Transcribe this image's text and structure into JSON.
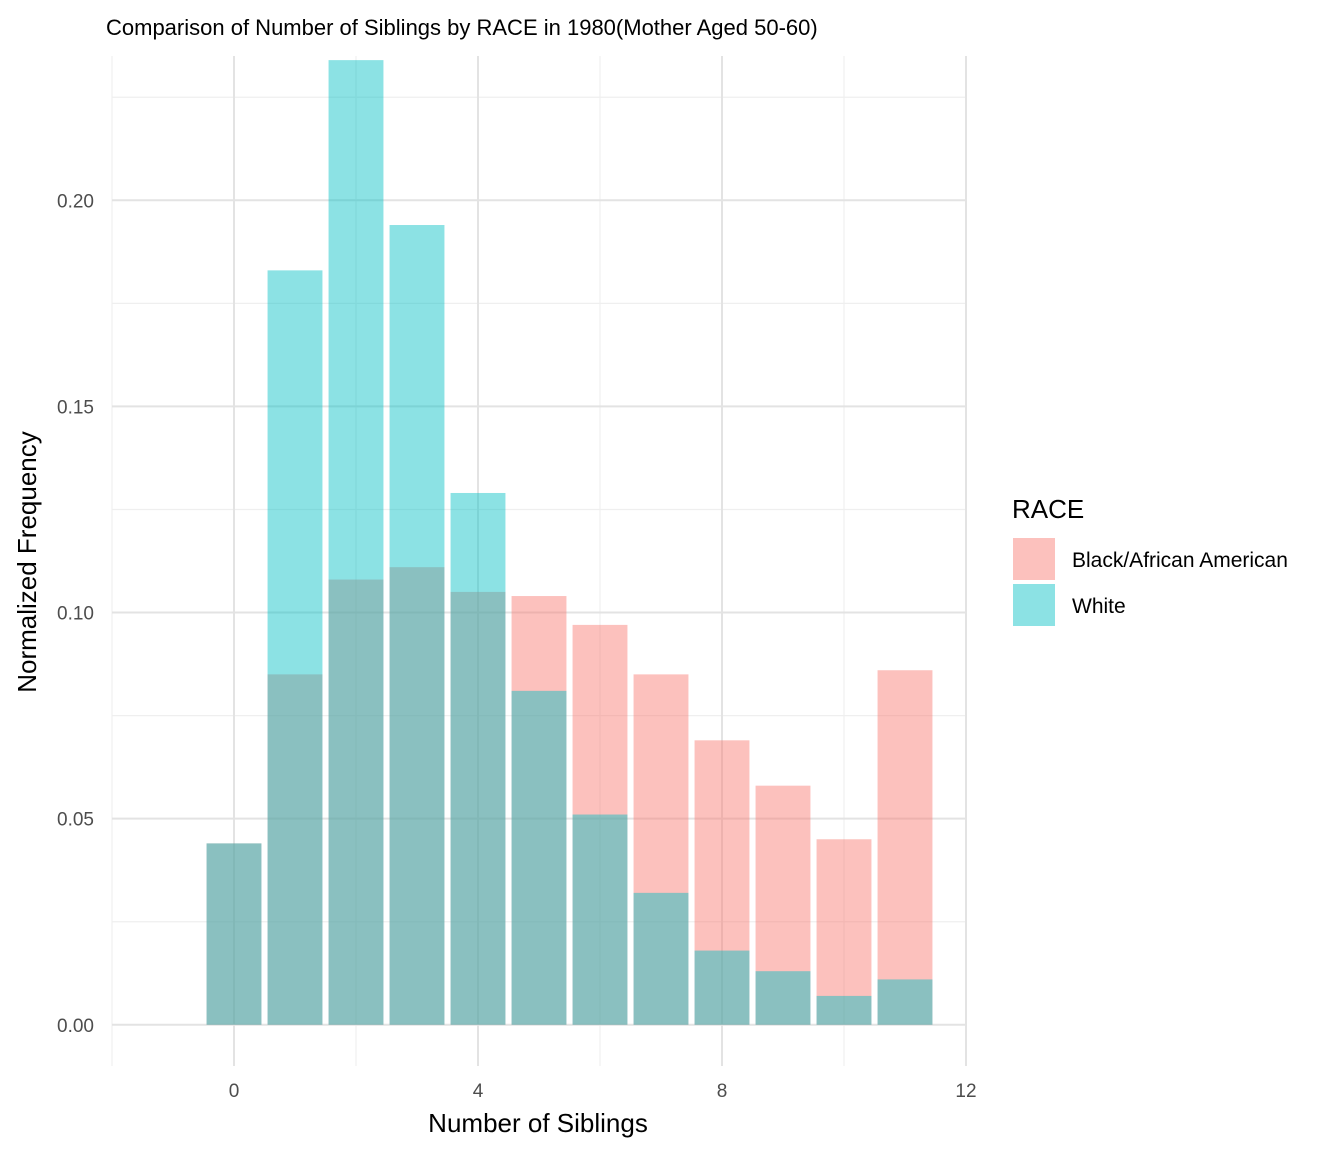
{
  "chart_data": {
    "type": "bar",
    "title": "Comparison of Number of Siblings by RACE in 1980(Mother Aged 50-60)",
    "xlabel": "Number of Siblings",
    "ylabel": "Normalized Frequency",
    "x": [
      0,
      1,
      2,
      3,
      4,
      5,
      6,
      7,
      8,
      9,
      10,
      11
    ],
    "xlim": [
      -2,
      12
    ],
    "ylim": [
      -0.01,
      0.235
    ],
    "xticks": [
      0,
      4,
      8,
      12
    ],
    "yticks": [
      0.0,
      0.05,
      0.1,
      0.15,
      0.2
    ],
    "xtick_labels": [
      "0",
      "4",
      "8",
      "12"
    ],
    "ytick_labels": [
      "0.00",
      "0.05",
      "0.10",
      "0.15",
      "0.20"
    ],
    "grid": true,
    "legend": {
      "title": "RACE",
      "position": "right"
    },
    "series": [
      {
        "name": "Black/African American",
        "color": "#F8766D",
        "values": [
          0.044,
          0.085,
          0.108,
          0.111,
          0.105,
          0.104,
          0.097,
          0.085,
          0.069,
          0.058,
          0.045,
          0.086
        ]
      },
      {
        "name": "White",
        "color": "#00BFC4",
        "values": [
          0.044,
          0.183,
          0.234,
          0.194,
          0.129,
          0.081,
          0.051,
          0.032,
          0.018,
          0.013,
          0.007,
          0.011
        ]
      }
    ]
  }
}
